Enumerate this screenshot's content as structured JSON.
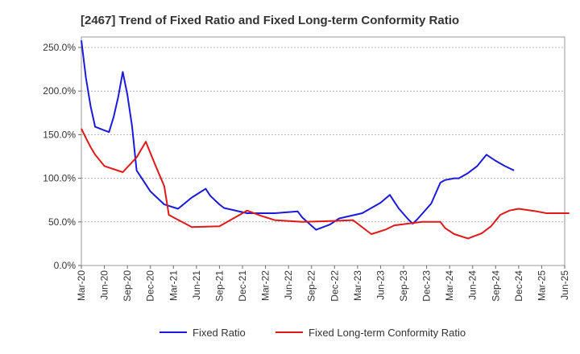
{
  "chart_data": {
    "type": "line",
    "title": "[2467]  Trend of Fixed Ratio and Fixed Long-term Conformity Ratio",
    "xlabel": "",
    "ylabel": "",
    "ylim": [
      0,
      262
    ],
    "y_ticks": [
      "0.0%",
      "50.0%",
      "100.0%",
      "150.0%",
      "200.0%",
      "250.0%"
    ],
    "y_tick_values": [
      0,
      50,
      100,
      150,
      200,
      250
    ],
    "x_ticks": [
      "Mar-20",
      "Jun-20",
      "Sep-20",
      "Dec-20",
      "Mar-21",
      "Jun-21",
      "Sep-21",
      "Dec-21",
      "Mar-22",
      "Jun-22",
      "Sep-22",
      "Dec-22",
      "Mar-23",
      "Jun-23",
      "Sep-23",
      "Dec-23",
      "Mar-24",
      "Jun-24",
      "Sep-24",
      "Dec-24",
      "Mar-25",
      "Jun-25"
    ],
    "grid": true,
    "legend_position": "bottom",
    "series": [
      {
        "name": "Fixed Ratio",
        "color": "#1a1adb",
        "points": [
          [
            0,
            258
          ],
          [
            1,
            215
          ],
          [
            2,
            183
          ],
          [
            3,
            159
          ],
          [
            6,
            153
          ],
          [
            7,
            170
          ],
          [
            8,
            193
          ],
          [
            9,
            222
          ],
          [
            10,
            196
          ],
          [
            11,
            160
          ],
          [
            12,
            109
          ],
          [
            15,
            85
          ],
          [
            18,
            70
          ],
          [
            21,
            65
          ],
          [
            24,
            78
          ],
          [
            27,
            88
          ],
          [
            28,
            80
          ],
          [
            30,
            70
          ],
          [
            31,
            66
          ],
          [
            36,
            60
          ],
          [
            42,
            60
          ],
          [
            47,
            62
          ],
          [
            48,
            55
          ],
          [
            51,
            41
          ],
          [
            54,
            47
          ],
          [
            56,
            54
          ],
          [
            61,
            60
          ],
          [
            62,
            63
          ],
          [
            65,
            72
          ],
          [
            67,
            81
          ],
          [
            68,
            73
          ],
          [
            69,
            65
          ],
          [
            71,
            53
          ],
          [
            72,
            48
          ],
          [
            73,
            53
          ],
          [
            76,
            71
          ],
          [
            78,
            95
          ],
          [
            79,
            98
          ],
          [
            81,
            100
          ],
          [
            82,
            100
          ],
          [
            84,
            106
          ],
          [
            86,
            114
          ],
          [
            88,
            127
          ],
          [
            90,
            120
          ],
          [
            92,
            114
          ],
          [
            94,
            109
          ]
        ]
      },
      {
        "name": "Fixed Long-term Conformity Ratio",
        "color": "#e01818",
        "points": [
          [
            0,
            157
          ],
          [
            1,
            146
          ],
          [
            2,
            136
          ],
          [
            3,
            127
          ],
          [
            5,
            114
          ],
          [
            9,
            107
          ],
          [
            12,
            124
          ],
          [
            14,
            142
          ],
          [
            16,
            116
          ],
          [
            18,
            91
          ],
          [
            19,
            58
          ],
          [
            24,
            44
          ],
          [
            30,
            45
          ],
          [
            33,
            54
          ],
          [
            36,
            63
          ],
          [
            39,
            57
          ],
          [
            42,
            52
          ],
          [
            48,
            50
          ],
          [
            54,
            51
          ],
          [
            59,
            52
          ],
          [
            60,
            48
          ],
          [
            63,
            36
          ],
          [
            66,
            41
          ],
          [
            68,
            46
          ],
          [
            74,
            50
          ],
          [
            78,
            50
          ],
          [
            79,
            43
          ],
          [
            81,
            36
          ],
          [
            84,
            31
          ],
          [
            87,
            37
          ],
          [
            89,
            45
          ],
          [
            91,
            58
          ],
          [
            93,
            63
          ],
          [
            95,
            65
          ],
          [
            99,
            62
          ],
          [
            101,
            60
          ],
          [
            106,
            60
          ]
        ]
      }
    ]
  }
}
